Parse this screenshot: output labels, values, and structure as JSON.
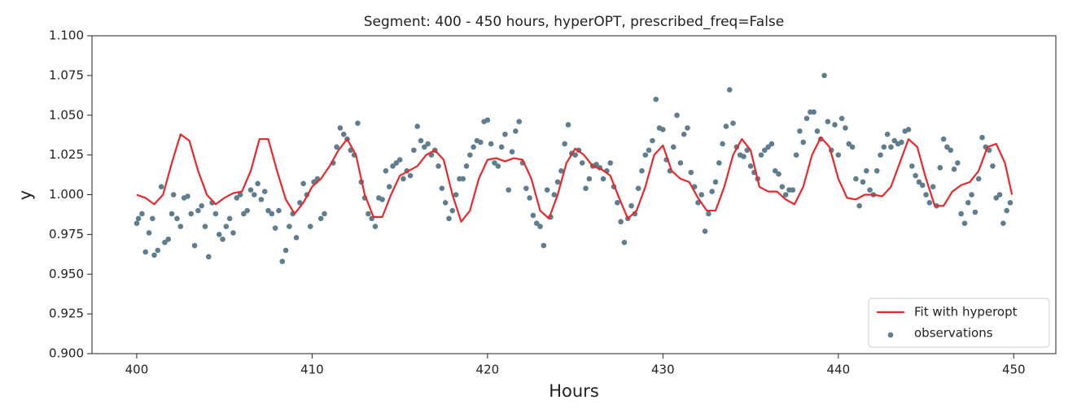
{
  "chart_data": {
    "type": "combo",
    "title": "Segment: 400 - 450 hours, hyperOPT, prescribed_freq=False",
    "x_label": "Hours",
    "y_label": "y",
    "xlim": [
      397.45,
      452.4
    ],
    "ylim": [
      0.9,
      1.1
    ],
    "xticks": [
      400,
      410,
      420,
      430,
      440,
      450
    ],
    "yticks": [
      {
        "value": 0.9,
        "label": "0.900"
      },
      {
        "value": 0.925,
        "label": "0.925"
      },
      {
        "value": 0.95,
        "label": "0.950"
      },
      {
        "value": 0.975,
        "label": "0.975"
      },
      {
        "value": 1.0,
        "label": "1.000"
      },
      {
        "value": 1.025,
        "label": "1.025"
      },
      {
        "value": 1.05,
        "label": "1.050"
      },
      {
        "value": 1.075,
        "label": "1.075"
      },
      {
        "value": 1.1,
        "label": "1.100"
      }
    ],
    "grid": false,
    "legend_position": "lower right",
    "series": [
      {
        "name": "Fit with hyperopt",
        "type": "line",
        "color": "#e8282b",
        "x": [
          400,
          400.5,
          401,
          401.5,
          402,
          402.5,
          403,
          403.5,
          404,
          404.5,
          405,
          405.5,
          406,
          406.5,
          407,
          407.5,
          408,
          408.5,
          409,
          409.5,
          410,
          410.5,
          411,
          411.5,
          412,
          412.5,
          413,
          413.5,
          414,
          414.5,
          415,
          415.5,
          416,
          416.5,
          417,
          417.5,
          418,
          418.5,
          419,
          419.5,
          420,
          420.5,
          421,
          421.5,
          422,
          422.5,
          423,
          423.5,
          424,
          424.5,
          425,
          425.5,
          426,
          426.5,
          427,
          427.5,
          428,
          428.5,
          429,
          429.5,
          430,
          430.5,
          431,
          431.5,
          432,
          432.5,
          433,
          433.5,
          434,
          434.5,
          435,
          435.5,
          436,
          436.5,
          437,
          437.5,
          438,
          438.5,
          439,
          439.5,
          440,
          440.5,
          441,
          441.5,
          442,
          442.5,
          443,
          443.5,
          444,
          444.5,
          445,
          445.5,
          446,
          446.5,
          447,
          447.5,
          448,
          448.5,
          449,
          449.5,
          449.9
        ],
        "values": [
          1.0,
          0.998,
          0.994,
          1.0,
          1.02,
          1.038,
          1.034,
          1.015,
          1.0,
          0.994,
          0.998,
          1.001,
          1.002,
          1.015,
          1.035,
          1.035,
          1.015,
          0.997,
          0.988,
          0.995,
          1.005,
          1.01,
          1.018,
          1.028,
          1.035,
          1.025,
          1.0,
          0.986,
          0.986,
          1.0,
          1.012,
          1.015,
          1.018,
          1.025,
          1.028,
          1.022,
          1.0,
          0.983,
          0.99,
          1.01,
          1.022,
          1.023,
          1.021,
          1.023,
          1.022,
          1.01,
          0.99,
          0.985,
          1.0,
          1.02,
          1.029,
          1.025,
          1.018,
          1.016,
          1.012,
          0.998,
          0.985,
          0.99,
          1.005,
          1.025,
          1.031,
          1.015,
          1.01,
          1.008,
          0.998,
          0.99,
          0.99,
          1.005,
          1.025,
          1.035,
          1.028,
          1.005,
          1.002,
          1.002,
          0.997,
          0.994,
          1.005,
          1.025,
          1.036,
          1.03,
          1.01,
          0.998,
          0.997,
          1.0,
          1.0,
          0.999,
          1.005,
          1.02,
          1.035,
          1.03,
          1.01,
          0.993,
          0.993,
          1.002,
          1.006,
          1.008,
          1.015,
          1.03,
          1.032,
          1.02,
          1.0
        ]
      },
      {
        "name": "observations",
        "type": "scatter",
        "color": "#5f7d8c",
        "x": [
          400.0,
          400.1,
          400.3,
          400.5,
          400.7,
          400.9,
          401.0,
          401.2,
          401.4,
          401.6,
          401.8,
          402.0,
          402.1,
          402.3,
          402.5,
          402.7,
          402.9,
          403.1,
          403.3,
          403.5,
          403.7,
          403.9,
          404.1,
          404.3,
          404.5,
          404.7,
          404.9,
          405.1,
          405.3,
          405.5,
          405.7,
          405.9,
          406.1,
          406.3,
          406.5,
          406.7,
          406.9,
          407.1,
          407.3,
          407.5,
          407.7,
          407.9,
          408.1,
          408.3,
          408.5,
          408.7,
          408.9,
          409.1,
          409.3,
          409.5,
          409.7,
          409.9,
          410.1,
          410.3,
          410.5,
          410.7,
          411.2,
          411.4,
          411.6,
          411.8,
          412.0,
          412.2,
          412.4,
          412.6,
          412.8,
          413.0,
          413.2,
          413.4,
          413.6,
          413.8,
          414.0,
          414.2,
          414.4,
          414.6,
          414.8,
          415.0,
          415.2,
          415.4,
          415.6,
          415.8,
          416.0,
          416.2,
          416.4,
          416.6,
          416.8,
          417.0,
          417.2,
          417.4,
          417.6,
          417.8,
          418.0,
          418.2,
          418.4,
          418.6,
          418.8,
          419.0,
          419.2,
          419.4,
          419.6,
          419.8,
          420.0,
          420.2,
          420.4,
          420.6,
          420.8,
          421.0,
          421.2,
          421.4,
          421.6,
          421.8,
          422.0,
          422.2,
          422.4,
          422.6,
          422.8,
          423.0,
          423.2,
          423.4,
          423.6,
          423.8,
          424.0,
          424.2,
          424.4,
          424.6,
          424.8,
          425.0,
          425.2,
          425.4,
          425.6,
          425.8,
          426.0,
          426.2,
          426.4,
          426.6,
          426.8,
          427.0,
          427.2,
          427.4,
          427.6,
          427.8,
          428.0,
          428.2,
          428.4,
          428.6,
          428.8,
          429.0,
          429.2,
          429.4,
          429.6,
          429.8,
          430.0,
          430.2,
          430.4,
          430.6,
          430.8,
          431.0,
          431.2,
          431.4,
          431.6,
          431.8,
          432.0,
          432.2,
          432.4,
          432.6,
          432.8,
          433.0,
          433.2,
          433.4,
          433.6,
          433.8,
          434.0,
          434.2,
          434.4,
          434.6,
          434.8,
          435.0,
          435.2,
          435.4,
          435.6,
          435.8,
          436.0,
          436.2,
          436.4,
          436.6,
          436.8,
          437.0,
          437.2,
          437.4,
          437.6,
          437.8,
          438.0,
          438.2,
          438.4,
          438.6,
          438.8,
          439.0,
          439.2,
          439.4,
          439.6,
          439.8,
          440.0,
          440.2,
          440.4,
          440.6,
          440.8,
          441.0,
          441.2,
          441.4,
          441.6,
          441.8,
          442.0,
          442.2,
          442.4,
          442.6,
          442.8,
          443.0,
          443.2,
          443.4,
          443.6,
          443.8,
          444.0,
          444.2,
          444.4,
          444.6,
          444.8,
          445.0,
          445.2,
          445.4,
          445.6,
          445.8,
          446.0,
          446.2,
          446.4,
          446.6,
          446.8,
          447.0,
          447.2,
          447.4,
          447.6,
          447.8,
          448.0,
          448.2,
          448.4,
          448.6,
          448.8,
          449.0,
          449.2,
          449.4,
          449.6,
          449.8
        ],
        "values": [
          0.982,
          0.985,
          0.988,
          0.964,
          0.976,
          0.985,
          0.962,
          0.965,
          1.005,
          0.97,
          0.972,
          0.988,
          1.0,
          0.985,
          0.98,
          0.998,
          0.999,
          0.988,
          0.968,
          0.99,
          0.993,
          0.98,
          0.961,
          0.995,
          0.988,
          0.975,
          0.972,
          0.98,
          0.985,
          0.976,
          0.998,
          1.0,
          0.988,
          0.99,
          1.003,
          1.0,
          1.007,
          0.997,
          1.002,
          0.99,
          0.988,
          0.979,
          0.99,
          0.958,
          0.965,
          0.98,
          0.988,
          0.973,
          0.995,
          1.007,
          1.0,
          0.98,
          1.008,
          1.01,
          0.985,
          0.988,
          1.02,
          1.03,
          1.042,
          1.038,
          1.035,
          1.028,
          1.025,
          1.045,
          1.008,
          0.998,
          0.988,
          0.985,
          0.98,
          0.998,
          0.997,
          1.015,
          1.005,
          1.018,
          1.02,
          1.022,
          1.01,
          1.015,
          1.012,
          1.028,
          1.043,
          1.034,
          1.03,
          1.032,
          1.025,
          1.028,
          1.018,
          1.004,
          0.995,
          0.985,
          0.99,
          1.0,
          1.01,
          1.01,
          1.018,
          1.025,
          1.03,
          1.034,
          1.033,
          1.046,
          1.047,
          1.032,
          1.02,
          1.018,
          1.03,
          1.038,
          1.003,
          1.027,
          1.04,
          1.046,
          1.02,
          1.004,
          0.998,
          0.987,
          0.982,
          0.98,
          0.968,
          1.003,
          0.986,
          1.0,
          1.008,
          1.015,
          1.032,
          1.044,
          1.026,
          1.025,
          1.028,
          1.02,
          1.004,
          1.01,
          1.018,
          1.019,
          1.017,
          1.01,
          1.015,
          1.02,
          1.005,
          0.995,
          0.983,
          0.97,
          0.985,
          0.993,
          0.988,
          1.004,
          1.015,
          1.025,
          1.028,
          1.034,
          1.06,
          1.042,
          1.041,
          1.022,
          1.015,
          1.03,
          1.05,
          1.02,
          1.038,
          1.042,
          1.014,
          1.005,
          0.995,
          1.0,
          0.977,
          0.988,
          1.002,
          1.008,
          1.02,
          1.032,
          1.043,
          1.066,
          1.045,
          1.03,
          1.025,
          1.024,
          1.028,
          1.018,
          1.014,
          1.01,
          1.025,
          1.028,
          1.03,
          1.032,
          1.015,
          1.013,
          1.005,
          1.0,
          1.003,
          1.003,
          1.025,
          1.04,
          1.033,
          1.048,
          1.052,
          1.052,
          1.04,
          1.035,
          1.075,
          1.046,
          1.028,
          1.044,
          1.025,
          1.048,
          1.042,
          1.032,
          1.03,
          1.01,
          0.993,
          1.008,
          1.015,
          1.003,
          1.0,
          1.015,
          1.025,
          1.03,
          1.038,
          1.03,
          1.034,
          1.032,
          1.033,
          1.04,
          1.041,
          1.018,
          1.012,
          1.008,
          1.006,
          1.0,
          0.995,
          1.005,
          0.993,
          1.017,
          1.035,
          1.03,
          1.028,
          1.016,
          1.02,
          0.988,
          0.982,
          0.995,
          1.0,
          0.989,
          1.01,
          1.036,
          1.03,
          1.028,
          1.018,
          0.998,
          1.0,
          0.982,
          0.99,
          0.995
        ]
      }
    ]
  }
}
